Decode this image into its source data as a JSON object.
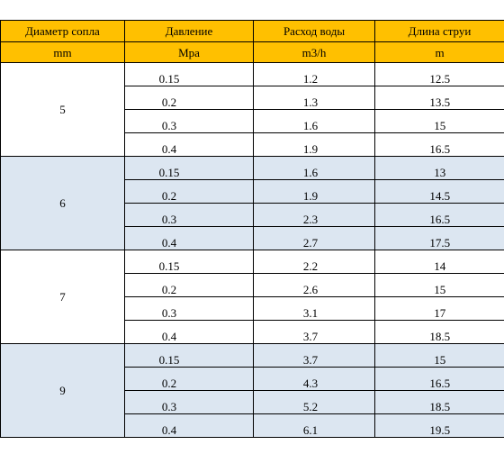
{
  "headers": {
    "row1": [
      "Диаметр сопла",
      "Давление",
      "Расход воды",
      "Длина струи"
    ],
    "row2": [
      "mm",
      "Mpa",
      "m3/h",
      "m"
    ]
  },
  "groups": [
    {
      "diameter": "5",
      "shade": "white",
      "rows": [
        [
          "0.15",
          "1.2",
          "12.5"
        ],
        [
          "0.2",
          "1.3",
          "13.5"
        ],
        [
          "0.3",
          "1.6",
          "15"
        ],
        [
          "0.4",
          "1.9",
          "16.5"
        ]
      ]
    },
    {
      "diameter": "6",
      "shade": "blue",
      "rows": [
        [
          "0.15",
          "1.6",
          "13"
        ],
        [
          "0.2",
          "1.9",
          "14.5"
        ],
        [
          "0.3",
          "2.3",
          "16.5"
        ],
        [
          "0.4",
          "2.7",
          "17.5"
        ]
      ]
    },
    {
      "diameter": "7",
      "shade": "white",
      "rows": [
        [
          "0.15",
          "2.2",
          "14"
        ],
        [
          "0.2",
          "2.6",
          "15"
        ],
        [
          "0.3",
          "3.1",
          "17"
        ],
        [
          "0.4",
          "3.7",
          "18.5"
        ]
      ]
    },
    {
      "diameter": "9",
      "shade": "blue",
      "rows": [
        [
          "0.15",
          "3.7",
          "15"
        ],
        [
          "0.2",
          "4.3",
          "16.5"
        ],
        [
          "0.3",
          "5.2",
          "18.5"
        ],
        [
          "0.4",
          "6.1",
          "19.5"
        ]
      ]
    }
  ]
}
